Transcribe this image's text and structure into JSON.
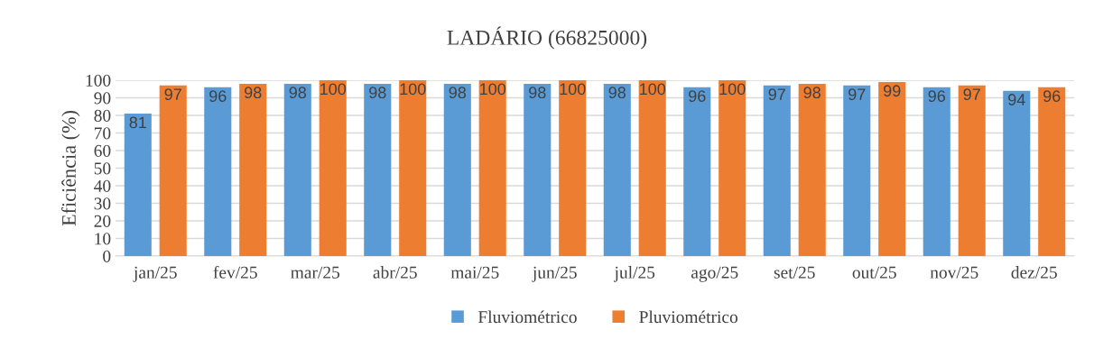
{
  "chart_data": {
    "type": "bar",
    "title": "LADÁRIO (66825000)",
    "ylabel": "Eficiência (%)",
    "categories": [
      "jan/25",
      "fev/25",
      "mar/25",
      "abr/25",
      "mai/25",
      "jun/25",
      "jul/25",
      "ago/25",
      "set/25",
      "out/25",
      "nov/25",
      "dez/25"
    ],
    "series": [
      {
        "name": "Fluviométrico",
        "color": "#5b9bd5",
        "values": [
          81,
          96,
          98,
          98,
          98,
          98,
          98,
          96,
          97,
          97,
          96,
          94
        ]
      },
      {
        "name": "Pluviométrico",
        "color": "#ed7d31",
        "values": [
          97,
          98,
          100,
          100,
          100,
          100,
          100,
          100,
          98,
          99,
          97,
          96
        ]
      }
    ],
    "ylim": [
      0,
      100
    ],
    "yticks": [
      0,
      10,
      20,
      30,
      40,
      50,
      60,
      70,
      80,
      90,
      100
    ],
    "grid": "y",
    "legend": "bottom",
    "data_labels": true
  }
}
